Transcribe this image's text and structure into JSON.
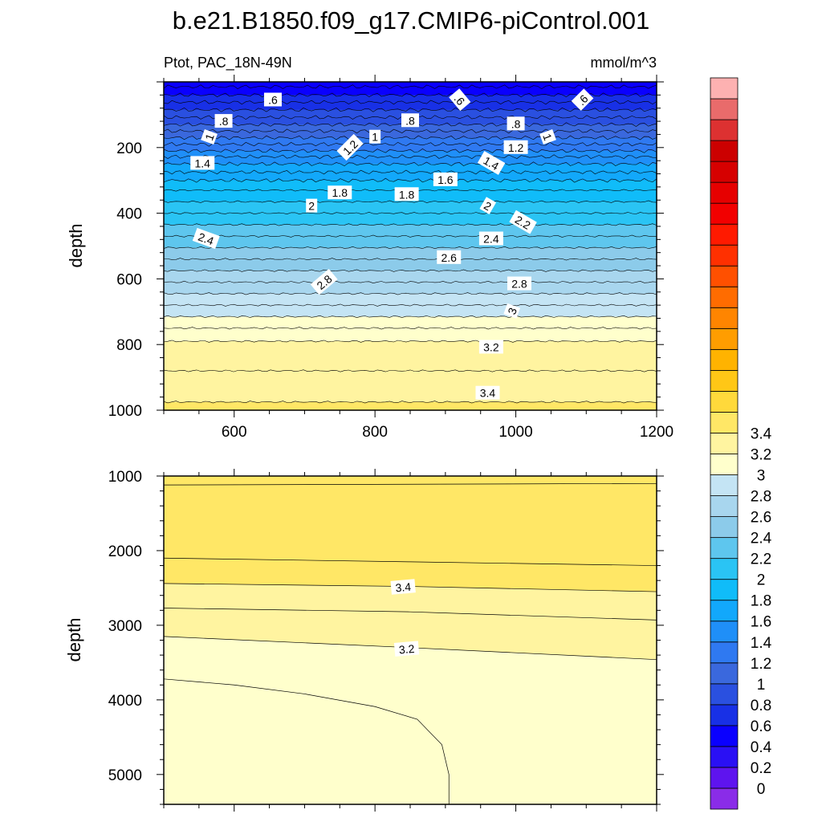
{
  "title": "b.e21.B1850.f09_g17.CMIP6-piControl.001",
  "left_string": "Ptot, PAC_18N-49N",
  "units": "mmol/m^3",
  "chart_data": {
    "type": "heatmap",
    "variable": "Ptot",
    "region": "PAC_18N-49N",
    "units": "mmol/m^3",
    "colormap": [
      "#8a2ce8",
      "#5e14ef",
      "#2a10f4",
      "#0a00ff",
      "#1830e6",
      "#2a50e0",
      "#3a68dd",
      "#2f79f1",
      "#1f8ff8",
      "#12a8fb",
      "#10bcf9",
      "#2ac4f4",
      "#5ec6ee",
      "#8ccbea",
      "#a8d6ee",
      "#c4e4f4",
      "#ffffcc",
      "#fff4a0",
      "#ffe766",
      "#ffd93b",
      "#ffc716",
      "#ffb300",
      "#ff9d00",
      "#ff8500",
      "#ff6c00",
      "#ff5000",
      "#ff3000",
      "#ff1a00",
      "#f20000",
      "#e60000",
      "#d60000",
      "#cc0000",
      "#dd3131",
      "#e96b6b",
      "#fdb1b1"
    ],
    "colorbar_labels": [
      "0",
      "0.2",
      "0.4",
      "0.6",
      "0.8",
      "1",
      "1.2",
      "1.4",
      "1.6",
      "1.8",
      "2",
      "2.2",
      "2.4",
      "2.6",
      "2.8",
      "3",
      "3.2",
      "3.4"
    ],
    "panels": [
      {
        "name": "upper",
        "ylabel": "depth",
        "xlim": [
          500,
          1200
        ],
        "ylim": [
          1000,
          0
        ],
        "xticks": [
          "600",
          "800",
          "1000",
          "1200"
        ],
        "yticks": [
          "200",
          "400",
          "600",
          "800",
          "1000"
        ],
        "bands": [
          {
            "top": 0,
            "bottom": 15,
            "value": 0.5
          },
          {
            "top": 15,
            "bottom": 40,
            "value": 0.55
          },
          {
            "top": 40,
            "bottom": 62,
            "value": 0.65
          },
          {
            "top": 62,
            "bottom": 85,
            "value": 0.75
          },
          {
            "top": 85,
            "bottom": 108,
            "value": 0.85
          },
          {
            "top": 108,
            "bottom": 130,
            "value": 0.95
          },
          {
            "top": 130,
            "bottom": 150,
            "value": 1.05
          },
          {
            "top": 150,
            "bottom": 170,
            "value": 1.15
          },
          {
            "top": 170,
            "bottom": 190,
            "value": 1.25
          },
          {
            "top": 190,
            "bottom": 210,
            "value": 1.35
          },
          {
            "top": 210,
            "bottom": 228,
            "value": 1.45
          },
          {
            "top": 228,
            "bottom": 250,
            "value": 1.55
          },
          {
            "top": 250,
            "bottom": 275,
            "value": 1.65
          },
          {
            "top": 275,
            "bottom": 300,
            "value": 1.75
          },
          {
            "top": 300,
            "bottom": 330,
            "value": 1.85
          },
          {
            "top": 330,
            "bottom": 365,
            "value": 1.95
          },
          {
            "top": 365,
            "bottom": 400,
            "value": 2.05
          },
          {
            "top": 400,
            "bottom": 435,
            "value": 2.15
          },
          {
            "top": 435,
            "bottom": 470,
            "value": 2.25
          },
          {
            "top": 470,
            "bottom": 505,
            "value": 2.35
          },
          {
            "top": 505,
            "bottom": 540,
            "value": 2.45
          },
          {
            "top": 540,
            "bottom": 575,
            "value": 2.55
          },
          {
            "top": 575,
            "bottom": 610,
            "value": 2.65
          },
          {
            "top": 610,
            "bottom": 645,
            "value": 2.75
          },
          {
            "top": 645,
            "bottom": 680,
            "value": 2.85
          },
          {
            "top": 680,
            "bottom": 715,
            "value": 2.95
          },
          {
            "top": 715,
            "bottom": 750,
            "value": 3.05
          },
          {
            "top": 750,
            "bottom": 790,
            "value": 3.15
          },
          {
            "top": 790,
            "bottom": 880,
            "value": 3.25
          },
          {
            "top": 880,
            "bottom": 975,
            "value": 3.35
          },
          {
            "top": 975,
            "bottom": 1000,
            "value": 3.45
          }
        ],
        "contour_labels": [
          {
            "text": ".6",
            "x": 655,
            "y": 55,
            "angle": 0
          },
          {
            "text": ".6",
            "x": 920,
            "y": 55,
            "angle": 50
          },
          {
            "text": ".6",
            "x": 1095,
            "y": 55,
            "angle": -45
          },
          {
            "text": ".8",
            "x": 585,
            "y": 120,
            "angle": 0
          },
          {
            "text": ".8",
            "x": 850,
            "y": 118,
            "angle": 0
          },
          {
            "text": ".8",
            "x": 1000,
            "y": 128,
            "angle": 0
          },
          {
            "text": "1",
            "x": 565,
            "y": 168,
            "angle": -70
          },
          {
            "text": "1",
            "x": 800,
            "y": 168,
            "angle": 0
          },
          {
            "text": "1",
            "x": 1045,
            "y": 168,
            "angle": 70
          },
          {
            "text": "1.2",
            "x": 765,
            "y": 200,
            "angle": -45
          },
          {
            "text": "1.2",
            "x": 1000,
            "y": 200,
            "angle": 0
          },
          {
            "text": "1.4",
            "x": 555,
            "y": 248,
            "angle": 0
          },
          {
            "text": "1.4",
            "x": 965,
            "y": 248,
            "angle": 30
          },
          {
            "text": "1.6",
            "x": 900,
            "y": 298,
            "angle": 0
          },
          {
            "text": "1.8",
            "x": 750,
            "y": 338,
            "angle": 0
          },
          {
            "text": "1.8",
            "x": 845,
            "y": 343,
            "angle": 0
          },
          {
            "text": "2",
            "x": 710,
            "y": 378,
            "angle": 0
          },
          {
            "text": "2",
            "x": 960,
            "y": 378,
            "angle": 30
          },
          {
            "text": "2.2",
            "x": 1010,
            "y": 428,
            "angle": 30
          },
          {
            "text": "2.4",
            "x": 560,
            "y": 478,
            "angle": 20
          },
          {
            "text": "2.4",
            "x": 965,
            "y": 478,
            "angle": 0
          },
          {
            "text": "2.6",
            "x": 905,
            "y": 535,
            "angle": 0
          },
          {
            "text": "2.8",
            "x": 728,
            "y": 610,
            "angle": -40
          },
          {
            "text": "2.8",
            "x": 1005,
            "y": 615,
            "angle": 0
          },
          {
            "text": "3",
            "x": 995,
            "y": 698,
            "angle": -70
          },
          {
            "text": "3.2",
            "x": 965,
            "y": 808,
            "angle": 0
          },
          {
            "text": "3.4",
            "x": 960,
            "y": 948,
            "angle": 0
          }
        ]
      },
      {
        "name": "lower",
        "ylabel": "depth",
        "xlim": [
          500,
          1200
        ],
        "ylim": [
          5400,
          1000
        ],
        "xticks": [],
        "yticks": [
          "1000",
          "2000",
          "3000",
          "4000",
          "5000"
        ],
        "bands": [
          {
            "value": 3.45,
            "upper": [
              [
                500,
                1000
              ],
              [
                1200,
                1000
              ]
            ],
            "lower": [
              [
                500,
                1120
              ],
              [
                1200,
                1100
              ]
            ]
          },
          {
            "value": 3.55,
            "upper": [
              [
                500,
                1120
              ],
              [
                1200,
                1100
              ]
            ],
            "lower": [
              [
                500,
                2100
              ],
              [
                850,
                2150
              ],
              [
                1200,
                2200
              ]
            ]
          },
          {
            "value": 3.45,
            "upper": [
              [
                500,
                2100
              ],
              [
                850,
                2150
              ],
              [
                1200,
                2200
              ]
            ],
            "lower": [
              [
                500,
                2440
              ],
              [
                850,
                2480
              ],
              [
                1200,
                2550
              ]
            ]
          },
          {
            "value": 3.35,
            "upper": [
              [
                500,
                2440
              ],
              [
                850,
                2480
              ],
              [
                1200,
                2550
              ]
            ],
            "lower": [
              [
                500,
                2770
              ],
              [
                850,
                2820
              ],
              [
                1200,
                2930
              ]
            ]
          },
          {
            "value": 3.25,
            "upper": [
              [
                500,
                2770
              ],
              [
                850,
                2820
              ],
              [
                1200,
                2930
              ]
            ],
            "lower": [
              [
                500,
                3150
              ],
              [
                850,
                3300
              ],
              [
                1200,
                3460
              ]
            ]
          },
          {
            "value": 3.15,
            "upper": [
              [
                500,
                3150
              ],
              [
                850,
                3300
              ],
              [
                1200,
                3460
              ]
            ],
            "lower": [
              [
                500,
                5400
              ],
              [
                1200,
                5400
              ]
            ]
          }
        ],
        "patches": [
          {
            "value": 3.05,
            "outline": [
              [
                500,
                3720
              ],
              [
                600,
                3800
              ],
              [
                700,
                3920
              ],
              [
                800,
                4090
              ],
              [
                860,
                4260
              ],
              [
                895,
                4600
              ],
              [
                905,
                5000
              ],
              [
                905,
                5400
              ],
              [
                500,
                5400
              ]
            ]
          }
        ],
        "contour_labels": [
          {
            "text": "3.4",
            "x": 840,
            "y": 2490,
            "angle": -5
          },
          {
            "text": "3.2",
            "x": 845,
            "y": 3320,
            "angle": -5
          }
        ]
      }
    ]
  }
}
